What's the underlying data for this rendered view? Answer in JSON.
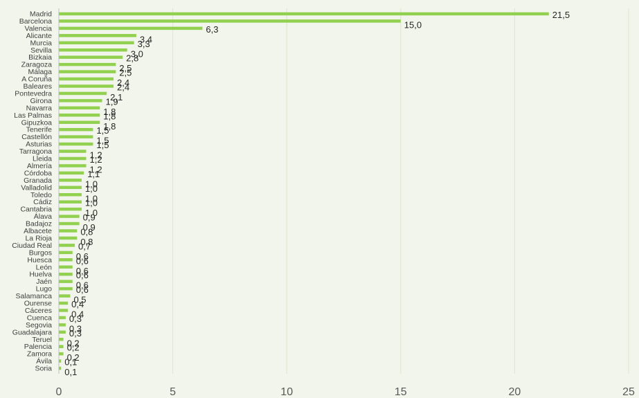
{
  "colors": {
    "background": "#f2f5eb",
    "bar": "#92d050",
    "grid": "#d9e6cc",
    "axis": "#bfbfbf"
  },
  "chart_data": {
    "type": "bar",
    "orientation": "horizontal",
    "title": "",
    "xlabel": "",
    "ylabel": "",
    "xlim": [
      0,
      25
    ],
    "xticks": [
      "0",
      "5",
      "10",
      "15",
      "20",
      "25"
    ],
    "grid": true,
    "categories": [
      "Madrid",
      "Barcelona",
      "Valencia",
      "Alicante",
      "Murcia",
      "Sevilla",
      "Bizkaia",
      "Zaragoza",
      "Málaga",
      "A Coruña",
      "Baleares",
      "Pontevedra",
      "Girona",
      "Navarra",
      "Las Palmas",
      "Gipuzkoa",
      "Tenerife",
      "Castellón",
      "Asturias",
      "Tarragona",
      "Lleida",
      "Almería",
      "Córdoba",
      "Granada",
      "Valladolid",
      "Toledo",
      "Cádiz",
      "Cantabria",
      "Álava",
      "Badajoz",
      "Albacete",
      "La Rioja",
      "Ciudad Real",
      "Burgos",
      "Huesca",
      "León",
      "Huelva",
      "Jaén",
      "Lugo",
      "Salamanca",
      "Ourense",
      "Cáceres",
      "Cuenca",
      "Segovia",
      "Guadalajara",
      "Teruel",
      "Palencia",
      "Zamora",
      "Ávila",
      "Soria"
    ],
    "values": [
      21.5,
      15.0,
      6.3,
      3.4,
      3.3,
      3.0,
      2.8,
      2.5,
      2.5,
      2.4,
      2.4,
      2.1,
      1.9,
      1.8,
      1.8,
      1.8,
      1.5,
      1.5,
      1.5,
      1.2,
      1.2,
      1.2,
      1.1,
      1.0,
      1.0,
      1.0,
      1.0,
      1.0,
      0.9,
      0.9,
      0.8,
      0.8,
      0.7,
      0.6,
      0.6,
      0.6,
      0.6,
      0.6,
      0.6,
      0.5,
      0.4,
      0.4,
      0.3,
      0.3,
      0.3,
      0.2,
      0.2,
      0.2,
      0.1,
      0.1
    ],
    "labels": [
      "21,5",
      "15,0",
      "6,3",
      "3,4",
      "3,3",
      "3,0",
      "2,8",
      "2,5",
      "2,5",
      "2,4",
      "2,4",
      "2,1",
      "1,9",
      "1,8",
      "1,8",
      "1,8",
      "1,5",
      "1,5",
      "1,5",
      "1,2",
      "1,2",
      "1,2",
      "1,1",
      "1,0",
      "1,0",
      "1,0",
      "1,0",
      "1,0",
      "0,9",
      "0,9",
      "0,8",
      "0,8",
      "0,7",
      "0,6",
      "0,6",
      "0,6",
      "0,6",
      "0,6",
      "0,6",
      "0,5",
      "0,4",
      "0,4",
      "0,3",
      "0,3",
      "0,3",
      "0,2",
      "0,2",
      "0,2",
      "0,1",
      "0,1"
    ]
  }
}
